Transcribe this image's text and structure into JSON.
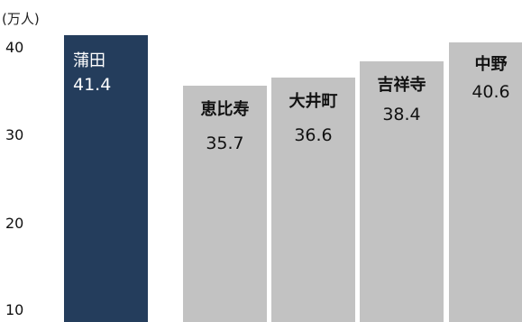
{
  "chart_data": {
    "type": "bar",
    "unit_label": "(万人)",
    "categories": [
      "蒲田",
      "恵比寿",
      "大井町",
      "吉祥寺",
      "中野"
    ],
    "values": [
      41.4,
      35.7,
      36.6,
      38.4,
      40.6
    ],
    "value_labels": [
      "41.4",
      "35.7",
      "36.6",
      "38.4",
      "40.6"
    ],
    "yticks": [
      {
        "value": 10,
        "label": "10"
      },
      {
        "value": 20,
        "label": "20"
      },
      {
        "value": 30,
        "label": "30"
      },
      {
        "value": 40,
        "label": "40"
      }
    ],
    "ylim": [
      10,
      41.4
    ],
    "grid": false,
    "legend": "none",
    "colors": {
      "highlight_bar": "#243d5c",
      "highlight_text": "#ffffff",
      "bar": "#c2c2c2",
      "bar_text": "#111111"
    }
  }
}
